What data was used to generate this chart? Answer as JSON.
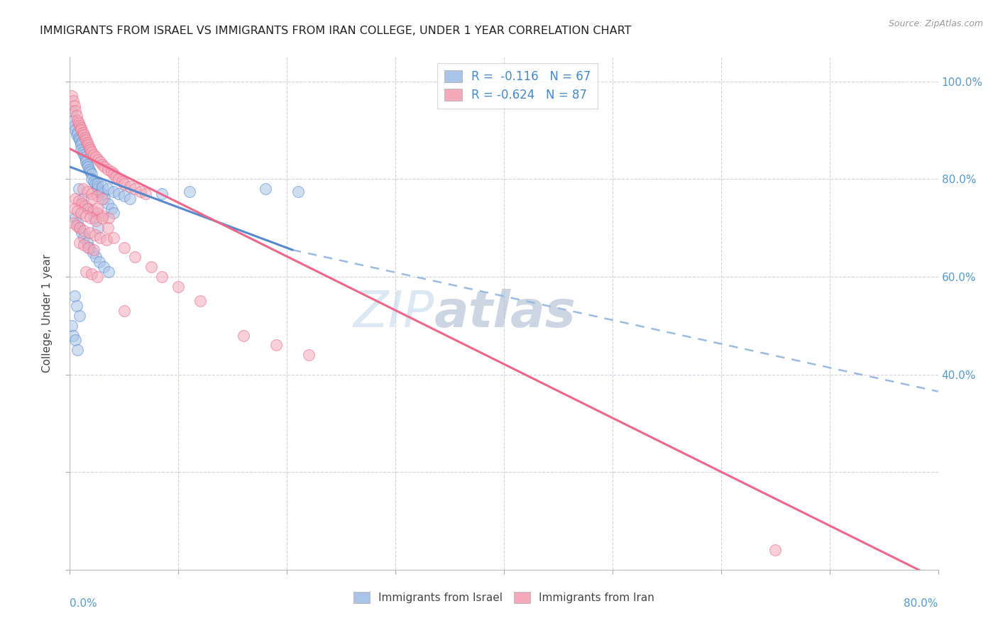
{
  "title": "IMMIGRANTS FROM ISRAEL VS IMMIGRANTS FROM IRAN COLLEGE, UNDER 1 YEAR CORRELATION CHART",
  "source": "Source: ZipAtlas.com",
  "ylabel": "College, Under 1 year",
  "legend1_label": "R =  -0.116   N = 67",
  "legend2_label": "R = -0.624   N = 87",
  "legend_bottom1": "Immigrants from Israel",
  "legend_bottom2": "Immigrants from Iran",
  "color_israel": "#aac4e8",
  "color_iran": "#f2aabb",
  "color_israel_line": "#5588cc",
  "color_iran_line": "#ee6688",
  "color_dashed": "#99bbdd",
  "watermark_text": "ZIP",
  "watermark_text2": "atlas",
  "xlim": [
    0.0,
    0.8
  ],
  "ylim": [
    0.0,
    1.05
  ],
  "israel_line_x0": 0.0,
  "israel_line_x1": 0.205,
  "israel_line_y0": 0.825,
  "israel_line_y1": 0.655,
  "iran_line_x0": 0.0,
  "iran_line_x1": 0.8,
  "iran_line_y0": 0.862,
  "iran_line_y1": -0.02,
  "dashed_line_x0": 0.205,
  "dashed_line_x1": 0.8,
  "dashed_line_y0": 0.655,
  "dashed_line_y1": 0.365,
  "israel_scatter_x": [
    0.002,
    0.003,
    0.004,
    0.005,
    0.006,
    0.007,
    0.008,
    0.009,
    0.01,
    0.01,
    0.01,
    0.012,
    0.013,
    0.014,
    0.015,
    0.015,
    0.016,
    0.017,
    0.018,
    0.019,
    0.02,
    0.02,
    0.022,
    0.023,
    0.025,
    0.026,
    0.028,
    0.03,
    0.032,
    0.035,
    0.038,
    0.04,
    0.005,
    0.007,
    0.009,
    0.011,
    0.013,
    0.016,
    0.018,
    0.021,
    0.024,
    0.027,
    0.031,
    0.036,
    0.008,
    0.012,
    0.017,
    0.022,
    0.026,
    0.004,
    0.006,
    0.009,
    0.002,
    0.003,
    0.085,
    0.11,
    0.005,
    0.007,
    0.18,
    0.21,
    0.025,
    0.03,
    0.035,
    0.04,
    0.045,
    0.05,
    0.055
  ],
  "israel_scatter_y": [
    0.94,
    0.92,
    0.91,
    0.9,
    0.89,
    0.895,
    0.885,
    0.88,
    0.875,
    0.87,
    0.86,
    0.855,
    0.85,
    0.845,
    0.84,
    0.835,
    0.83,
    0.825,
    0.82,
    0.815,
    0.81,
    0.8,
    0.795,
    0.79,
    0.785,
    0.78,
    0.775,
    0.77,
    0.76,
    0.75,
    0.74,
    0.73,
    0.72,
    0.71,
    0.7,
    0.69,
    0.68,
    0.67,
    0.66,
    0.65,
    0.64,
    0.63,
    0.62,
    0.61,
    0.78,
    0.76,
    0.74,
    0.72,
    0.7,
    0.56,
    0.54,
    0.52,
    0.5,
    0.48,
    0.77,
    0.775,
    0.47,
    0.45,
    0.78,
    0.775,
    0.79,
    0.785,
    0.78,
    0.775,
    0.77,
    0.765,
    0.76
  ],
  "iran_scatter_x": [
    0.002,
    0.003,
    0.004,
    0.005,
    0.006,
    0.007,
    0.008,
    0.009,
    0.01,
    0.01,
    0.012,
    0.013,
    0.014,
    0.015,
    0.016,
    0.017,
    0.018,
    0.019,
    0.02,
    0.022,
    0.024,
    0.026,
    0.028,
    0.03,
    0.032,
    0.035,
    0.038,
    0.04,
    0.042,
    0.045,
    0.048,
    0.05,
    0.055,
    0.06,
    0.065,
    0.07,
    0.005,
    0.008,
    0.011,
    0.014,
    0.017,
    0.021,
    0.025,
    0.03,
    0.036,
    0.003,
    0.006,
    0.009,
    0.013,
    0.018,
    0.023,
    0.028,
    0.034,
    0.012,
    0.016,
    0.02,
    0.025,
    0.03,
    0.004,
    0.007,
    0.01,
    0.015,
    0.019,
    0.024,
    0.009,
    0.013,
    0.017,
    0.022,
    0.015,
    0.02,
    0.025,
    0.05,
    0.19,
    0.22,
    0.16,
    0.65,
    0.12,
    0.1,
    0.085,
    0.075,
    0.06,
    0.05,
    0.04,
    0.035,
    0.03,
    0.025,
    0.02
  ],
  "iran_scatter_y": [
    0.97,
    0.96,
    0.95,
    0.94,
    0.93,
    0.92,
    0.915,
    0.91,
    0.905,
    0.9,
    0.895,
    0.89,
    0.885,
    0.88,
    0.875,
    0.87,
    0.865,
    0.86,
    0.855,
    0.85,
    0.845,
    0.84,
    0.835,
    0.83,
    0.825,
    0.82,
    0.815,
    0.81,
    0.805,
    0.8,
    0.795,
    0.79,
    0.785,
    0.78,
    0.775,
    0.77,
    0.76,
    0.755,
    0.75,
    0.745,
    0.74,
    0.735,
    0.73,
    0.725,
    0.72,
    0.71,
    0.705,
    0.7,
    0.695,
    0.69,
    0.685,
    0.68,
    0.675,
    0.78,
    0.775,
    0.77,
    0.765,
    0.76,
    0.74,
    0.735,
    0.73,
    0.725,
    0.72,
    0.715,
    0.67,
    0.665,
    0.66,
    0.655,
    0.61,
    0.605,
    0.6,
    0.53,
    0.46,
    0.44,
    0.48,
    0.04,
    0.55,
    0.58,
    0.6,
    0.62,
    0.64,
    0.66,
    0.68,
    0.7,
    0.72,
    0.74,
    0.76
  ]
}
